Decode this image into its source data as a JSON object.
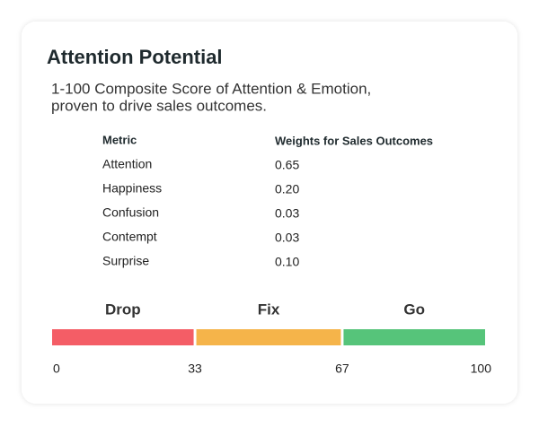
{
  "title": "Attention Potential",
  "subtitle": [
    "1-100 Composite Score of Attention & Emotion,",
    "proven to drive sales outcomes."
  ],
  "table": {
    "header": [
      "Metric",
      "Weights for Sales Outcomes"
    ],
    "rows": [
      [
        "Attention",
        "0.65"
      ],
      [
        "Happiness",
        "0.20"
      ],
      [
        "Confusion",
        "0.03"
      ],
      [
        "Contempt",
        "0.03"
      ],
      [
        "Surprise",
        "0.10"
      ]
    ]
  },
  "scale": {
    "ticks": [
      0,
      33,
      67,
      100
    ],
    "segments": [
      {
        "name": "Drop",
        "color": "#f45d66"
      },
      {
        "name": "Fix",
        "color": "#f5b44a"
      },
      {
        "name": "Go",
        "color": "#56c47a"
      }
    ]
  }
}
